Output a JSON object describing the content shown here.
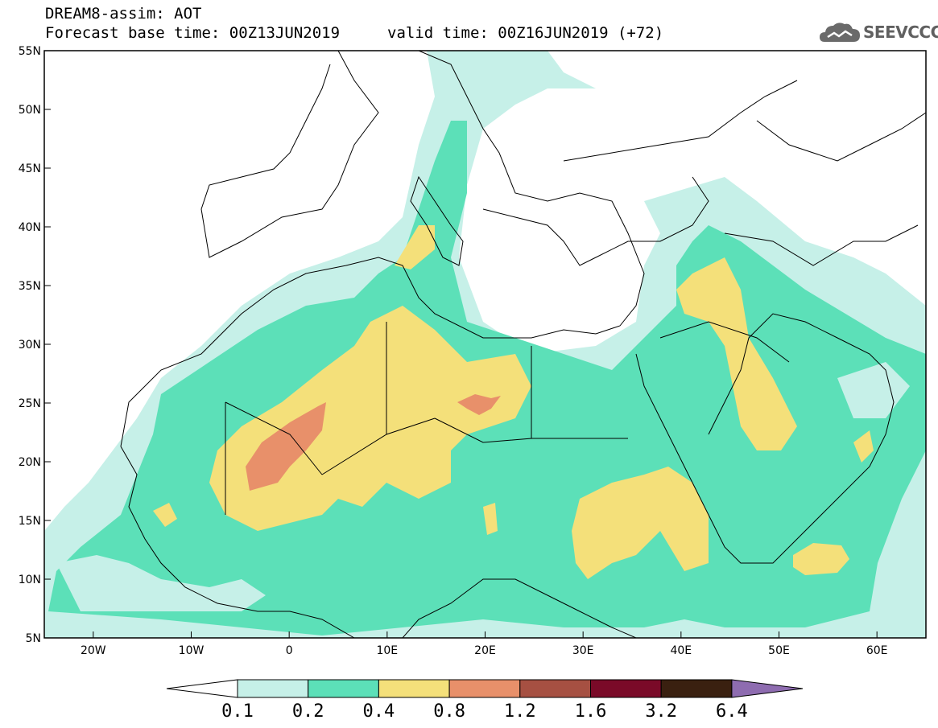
{
  "header": {
    "line1": "DREAM8-assim: AOT",
    "line2": "Forecast base time: 00Z13JUN2019",
    "valid": "valid time: 00Z16JUN2019 (+72)"
  },
  "logo": {
    "text": "SEEVCCC"
  },
  "map": {
    "lon_range": [
      -25,
      65
    ],
    "lat_range": [
      5,
      55
    ],
    "x_ticks": [
      "20W",
      "10W",
      "0",
      "10E",
      "20E",
      "30E",
      "40E",
      "50E",
      "60E"
    ],
    "y_ticks": [
      "55N",
      "50N",
      "45N",
      "40N",
      "35N",
      "30N",
      "25N",
      "20N",
      "15N",
      "10N",
      "5N"
    ]
  },
  "colorbar": {
    "levels": [
      "0.1",
      "0.2",
      "0.4",
      "0.8",
      "1.2",
      "1.6",
      "3.2",
      "6.4"
    ],
    "colors": [
      "#ffffff",
      "#c6f0e8",
      "#5ce0b8",
      "#f4e07a",
      "#e8906a",
      "#a65042",
      "#7a0a28",
      "#3a2010",
      "#8e6cb0"
    ]
  },
  "legend_colors": {
    "c01": "#c6f0e8",
    "c02": "#5ce0b8",
    "c04": "#f4e07a",
    "c08": "#e8906a",
    "land_lines": "#000000"
  }
}
